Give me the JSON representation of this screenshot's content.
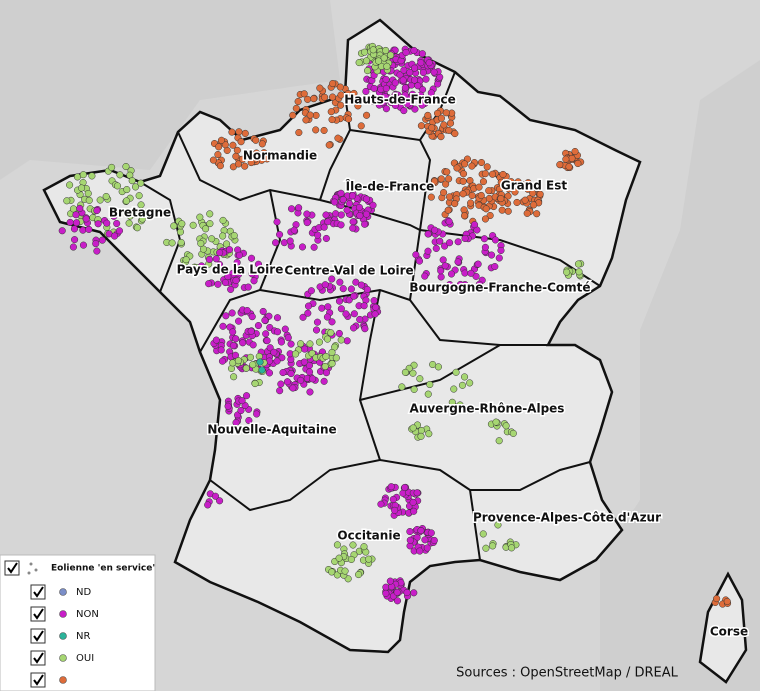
{
  "map": {
    "regions": [
      "Hauts-de-France",
      "Normandie",
      "Île-de-France",
      "Grand Est",
      "Bretagne",
      "Pays de la Loire",
      "Centre-Val de Loire",
      "Bourgogne-Franche-Comté",
      "Nouvelle-Aquitaine",
      "Auvergne-Rhône-Alpes",
      "Occitanie",
      "Provence-Alpes-Côte d'Azur",
      "Corse"
    ],
    "legend": {
      "title": "Eolienne 'en service'",
      "items": [
        {
          "label": "ND",
          "color": "#7b8ec8"
        },
        {
          "label": "NON",
          "color": "#c81ec8"
        },
        {
          "label": "NR",
          "color": "#2bb39a"
        },
        {
          "label": "OUI",
          "color": "#a6d672"
        },
        {
          "color": "#de6c3a"
        }
      ]
    },
    "source": "Sources : OpenStreetMap / DREAL"
  }
}
